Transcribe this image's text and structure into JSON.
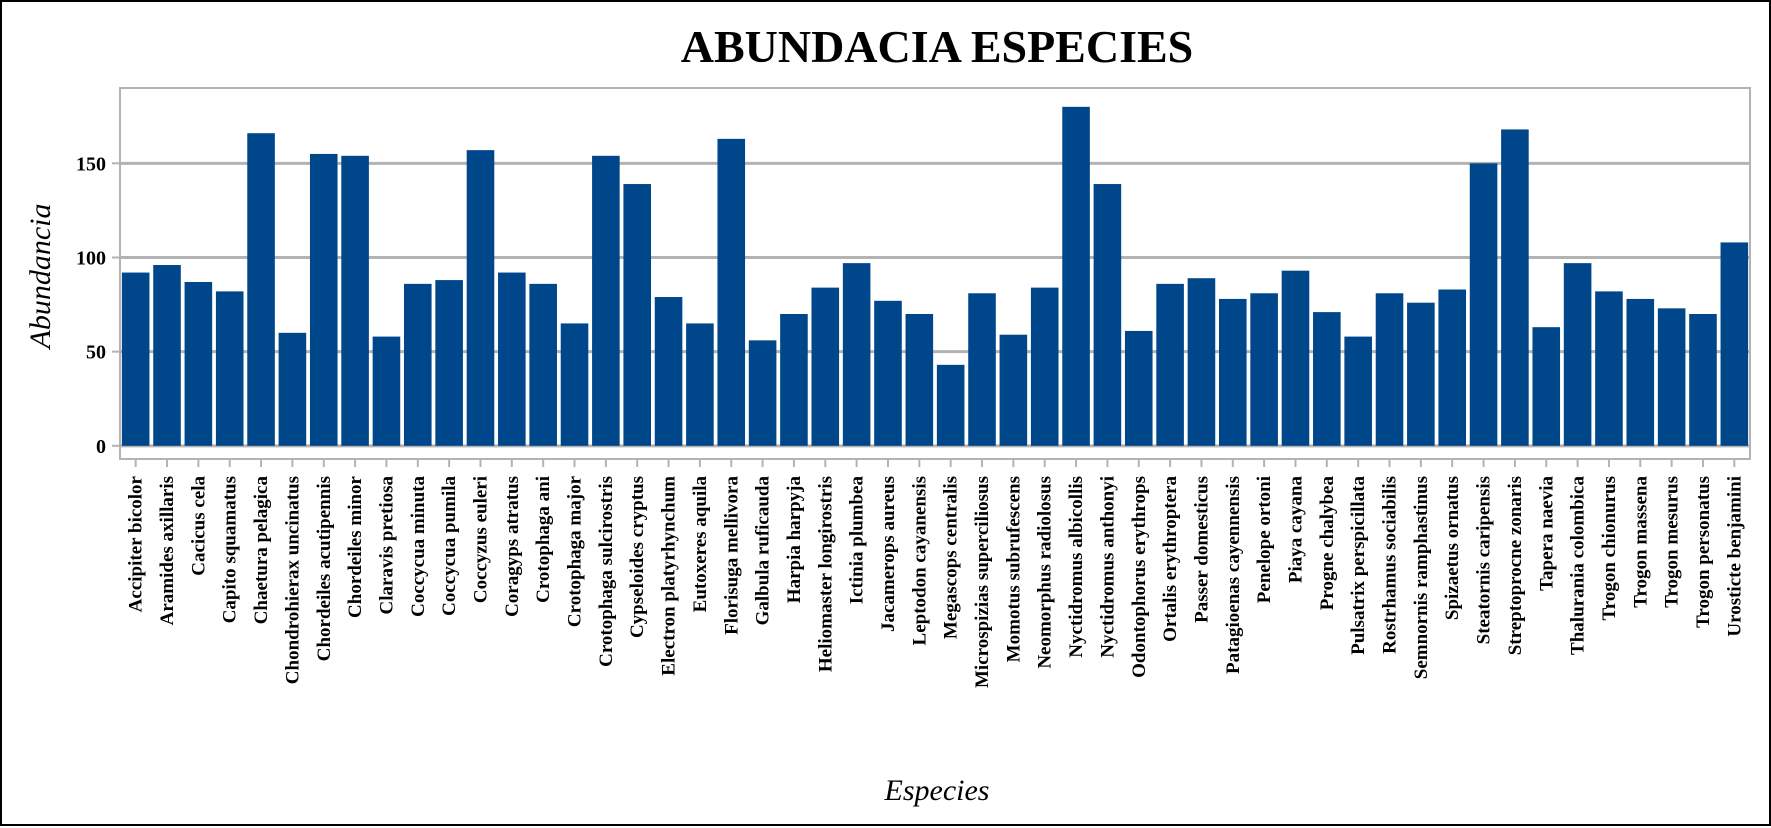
{
  "chart_data": {
    "type": "bar",
    "title": "ABUNDACIA ESPECIES",
    "xlabel": "Especies",
    "ylabel": "Abundancia",
    "ylim": [
      -7,
      190
    ],
    "yticks": [
      0,
      50,
      100,
      150
    ],
    "grid": true,
    "bar_color": "#00468b",
    "categories": [
      "Accipiter bicolor",
      "Aramides axillaris",
      "Cacicus cela",
      "Capito squamatus",
      "Chaetura pelagica",
      "Chondrohierax uncinatus",
      "Chordeiles acutipennis",
      "Chordeiles minor",
      "Claravis pretiosa",
      "Coccycua minuta",
      "Coccycua pumila",
      "Coccyzus euleri",
      "Coragyps atratus",
      "Crotophaga ani",
      "Crotophaga major",
      "Crotophaga sulcirostris",
      "Cypseloides cryptus",
      "Electron platyrhynchum",
      "Eutoxeres aquila",
      "Florisuga mellivora",
      "Galbula ruficauda",
      "Harpia harpyja",
      "Heliomaster longirostris",
      "Ictinia plumbea",
      "Jacamerops aureus",
      "Leptodon cayanensis",
      "Megascops centralis",
      "Microspizias superciliosus",
      "Momotus subrufescens",
      "Neomorphus radiolosus",
      "Nyctidromus albicollis",
      "Nyctidromus anthonyi",
      "Odontophorus erythrops",
      "Ortalis erythroptera",
      "Passer domesticus",
      "Patagioenas cayennensis",
      "Penelope ortoni",
      "Piaya cayana",
      "Progne chalybea",
      "Pulsatrix perspicillata",
      "Rostrhamus sociabilis",
      "Semnornis ramphastinus",
      "Spizaetus ornatus",
      "Steatornis caripensis",
      "Streptoprocne zonaris",
      "Tapera naevia",
      "Thalurania colombica",
      "Trogon chionurus",
      "Trogon massena",
      "Trogon mesurus",
      "Trogon personatus",
      "Urosticte benjamini"
    ],
    "values": [
      92,
      96,
      87,
      82,
      166,
      60,
      155,
      154,
      58,
      86,
      88,
      157,
      92,
      86,
      65,
      154,
      139,
      79,
      65,
      163,
      56,
      70,
      84,
      97,
      77,
      70,
      43,
      81,
      59,
      84,
      180,
      139,
      61,
      86,
      89,
      78,
      81,
      93,
      71,
      58,
      81,
      76,
      83,
      150,
      168,
      63,
      97,
      82,
      78,
      73,
      70,
      108
    ]
  }
}
